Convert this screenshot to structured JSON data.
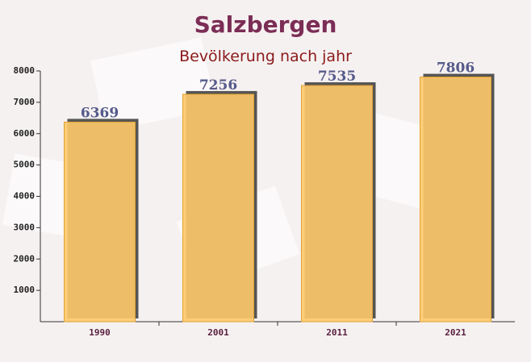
{
  "chart_data": {
    "type": "bar",
    "title": "Salzbergen",
    "subtitle": "Bevölkerung nach jahr",
    "categories": [
      "1990",
      "2001",
      "2011",
      "2021"
    ],
    "values": [
      6369,
      7256,
      7535,
      7806
    ],
    "color": "#fec96a",
    "ylim": [
      0,
      8000
    ],
    "yticks": [
      1000,
      2000,
      3000,
      4000,
      5000,
      6000,
      7000,
      8000
    ]
  }
}
